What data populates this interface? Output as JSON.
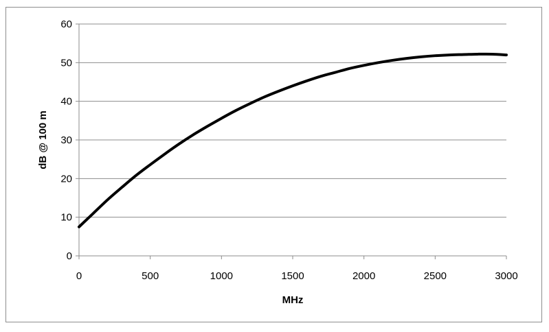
{
  "chart_data": {
    "type": "line",
    "title": "",
    "xlabel": "MHz",
    "ylabel": "dB @ 100 m",
    "xlim": [
      0,
      3000
    ],
    "ylim": [
      0,
      60
    ],
    "x_ticks": [
      0,
      500,
      1000,
      1500,
      2000,
      2500,
      3000
    ],
    "y_ticks": [
      0,
      10,
      20,
      30,
      40,
      50,
      60
    ],
    "grid": "horizontal",
    "legend": "none",
    "series": [
      {
        "color": "#000000",
        "x": [
          0,
          100,
          200,
          300,
          400,
          500,
          600,
          700,
          800,
          900,
          1000,
          1100,
          1200,
          1300,
          1400,
          1500,
          1600,
          1700,
          1800,
          1900,
          2000,
          2100,
          2200,
          2300,
          2400,
          2500,
          2600,
          2700,
          2800,
          2900,
          3000
        ],
        "y": [
          7.5,
          11.0,
          14.5,
          17.7,
          20.8,
          23.6,
          26.3,
          28.9,
          31.3,
          33.5,
          35.6,
          37.6,
          39.4,
          41.1,
          42.6,
          44.0,
          45.3,
          46.5,
          47.5,
          48.5,
          49.3,
          50.0,
          50.6,
          51.1,
          51.5,
          51.8,
          52.0,
          52.1,
          52.2,
          52.2,
          52.0
        ]
      }
    ]
  }
}
